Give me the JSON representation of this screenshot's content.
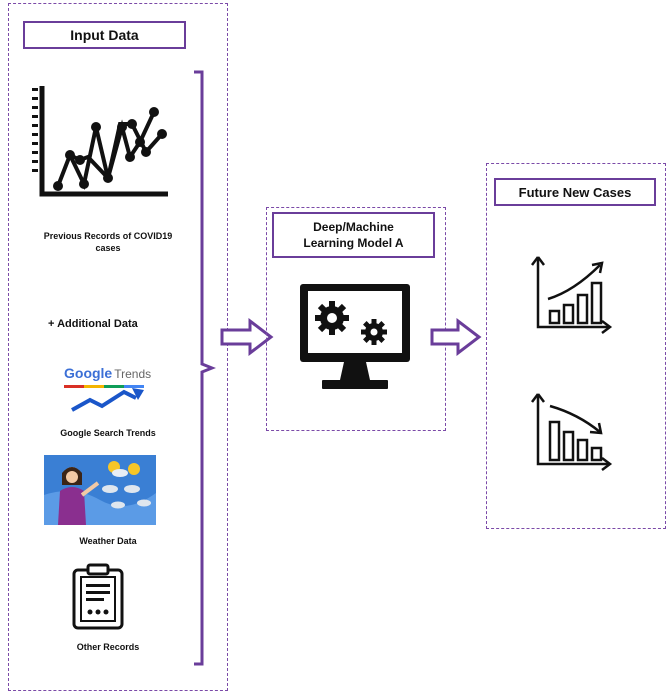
{
  "input_panel": {
    "title": "Input Data",
    "previous_records_label": "Previous Records of COVID19 cases",
    "additional_label": "+ Additional Data",
    "google_logo_text": "Google",
    "google_logo_suffix": "Trends",
    "google_label": "Google Search Trends",
    "weather_label": "Weather Data",
    "other_label": "Other Records"
  },
  "model_panel": {
    "title_line1": "Deep/Machine",
    "title_line2": "Learning Model A"
  },
  "output_panel": {
    "title": "Future New Cases"
  },
  "colors": {
    "accent": "#6a3d9a",
    "panel_border": "#7b4aa8"
  },
  "icons": [
    "scatter-line-chart-icon",
    "google-trends-logo",
    "weather-presenter-image",
    "clipboard-icon",
    "monitor-gears-icon",
    "rising-bar-chart-icon",
    "falling-bar-chart-icon",
    "right-arrow-icon"
  ]
}
